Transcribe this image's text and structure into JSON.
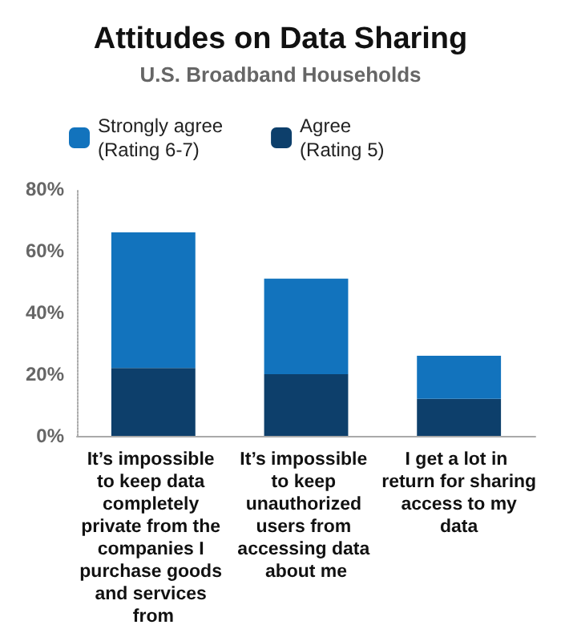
{
  "chart_data": {
    "type": "bar",
    "title": "Attitudes on Data Sharing",
    "subtitle": "U.S. Broadband Households",
    "categories": [
      "It’s impossible to keep data completely private from the companies I purchase goods and services from",
      "It’s impossible to keep unauthorized users from accessing data about me",
      "I get a lot in return for sharing access to my data"
    ],
    "series": [
      {
        "name": "Agree\n(Rating 5)",
        "color": "#0d3f6b",
        "values": [
          22,
          20,
          12
        ]
      },
      {
        "name": "Strongly agree\n(Rating 6-7)",
        "color": "#1273bd",
        "values": [
          44,
          31,
          14
        ]
      }
    ],
    "stacked": true,
    "ylim": [
      0,
      80
    ],
    "yticks": [
      {
        "value": 0,
        "label": "0%"
      },
      {
        "value": 20,
        "label": "20%"
      },
      {
        "value": 40,
        "label": "40%"
      },
      {
        "value": 60,
        "label": "60%"
      },
      {
        "value": 80,
        "label": "80%"
      }
    ],
    "grid": false,
    "legend": "top"
  }
}
